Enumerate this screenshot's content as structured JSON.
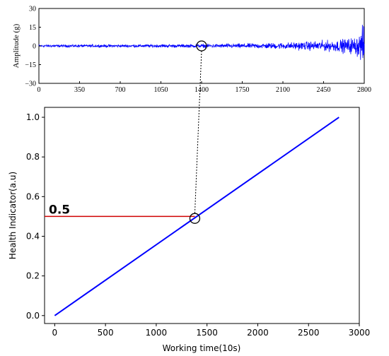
{
  "chart_data": [
    {
      "type": "line",
      "title": "",
      "xlabel": "",
      "ylabel": "Amplitude (g)",
      "xlim": [
        0,
        2800
      ],
      "ylim": [
        -30,
        30
      ],
      "xticks": [
        "0",
        "350",
        "700",
        "1050",
        "1400",
        "1750",
        "2100",
        "2450",
        "2800"
      ],
      "yticks": [
        "30",
        "15",
        "0",
        "−15",
        "−30"
      ],
      "series_color": "#0000ff",
      "envelope": {
        "x": [
          0,
          350,
          700,
          1050,
          1400,
          1750,
          2000,
          2200,
          2400,
          2550,
          2650,
          2720,
          2760,
          2790,
          2800
        ],
        "amplitude": [
          1.5,
          1.5,
          1.6,
          1.8,
          2.0,
          2.6,
          3.3,
          4.2,
          5.5,
          6.5,
          8.0,
          10,
          14,
          22,
          28
        ]
      },
      "marker_circle": {
        "x": 1400,
        "y": 0
      },
      "grid": false
    },
    {
      "type": "line",
      "title": "",
      "xlabel": "Working time(10s)",
      "ylabel": "Health Indicator(a.u)",
      "xlim": [
        -100,
        3000
      ],
      "ylim": [
        -0.04,
        1.05
      ],
      "xticks": [
        0,
        500,
        1000,
        1500,
        2000,
        2500,
        3000
      ],
      "yticks": [
        "0.0",
        "0.2",
        "0.4",
        "0.6",
        "0.8",
        "1.0"
      ],
      "series": [
        {
          "x": [
            0,
            2800
          ],
          "y": [
            0.0,
            1.0
          ],
          "color": "#0000ff"
        }
      ],
      "threshold": {
        "y": 0.5,
        "label": "0.5",
        "x_end": 1380,
        "color": "#d00000"
      },
      "marker_circle": {
        "x": 1380,
        "y": 0.49
      },
      "grid": false
    }
  ]
}
